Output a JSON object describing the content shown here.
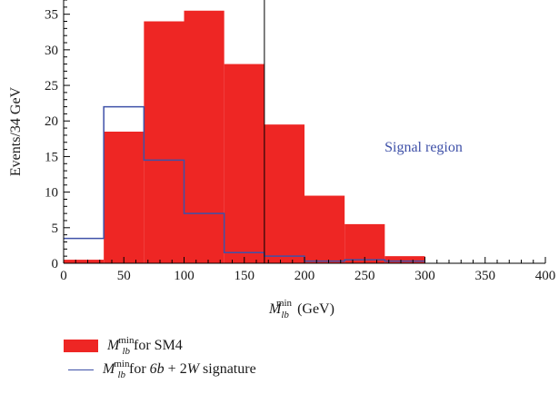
{
  "chart_data": {
    "type": "bar",
    "bin_width": 33.33,
    "x_range": [
      0,
      400
    ],
    "y_range": [
      0,
      37
    ],
    "x_ticks": [
      0,
      50,
      100,
      150,
      200,
      250,
      300,
      350,
      400
    ],
    "y_ticks": [
      0,
      5,
      10,
      15,
      20,
      25,
      30,
      35
    ],
    "x_tick_labels": [
      "0",
      "50",
      "100",
      "150",
      "200",
      "250",
      "300",
      "350",
      "400"
    ],
    "y_tick_labels": [
      "0",
      "5",
      "10",
      "15",
      "20",
      "25",
      "30",
      "35"
    ],
    "ylabel": "Events/34 GeV",
    "xlabel_main": "M",
    "xlabel_sub": "lb",
    "xlabel_sup": "min",
    "xlabel_unit": "(GeV)",
    "cut_line_x": 166.7,
    "annotation": "Signal region",
    "grid": false,
    "legend_position": "below",
    "series": [
      {
        "name": "SM4",
        "style": "filled",
        "color": "#ee2624",
        "bin_edges": [
          0,
          33.33,
          66.67,
          100,
          133.33,
          166.67,
          200,
          233.33,
          266.67,
          300
        ],
        "values": [
          0.5,
          18.5,
          34,
          35.5,
          28,
          19.5,
          9.5,
          5.5,
          1
        ]
      },
      {
        "name": "6b + 2W signature",
        "style": "step",
        "color": "#3f51a8",
        "bin_edges": [
          0,
          33.33,
          66.67,
          100,
          133.33,
          166.67,
          200,
          233.33,
          266.67,
          300
        ],
        "values": [
          3.5,
          22,
          14.5,
          7,
          1.5,
          1,
          0.3,
          0.5,
          0.3
        ]
      }
    ]
  },
  "legend": {
    "items": [
      {
        "sym_main": "M",
        "sym_sub": "lb",
        "sym_sup": "min",
        "for_text": " for SM4"
      },
      {
        "sym_main": "M",
        "sym_sub": "lb",
        "sym_sup": "min",
        "for_text": " for ",
        "italic_b": "6b",
        "plus": " + 2",
        "italic_w": "W",
        "tail": " signature"
      }
    ]
  }
}
